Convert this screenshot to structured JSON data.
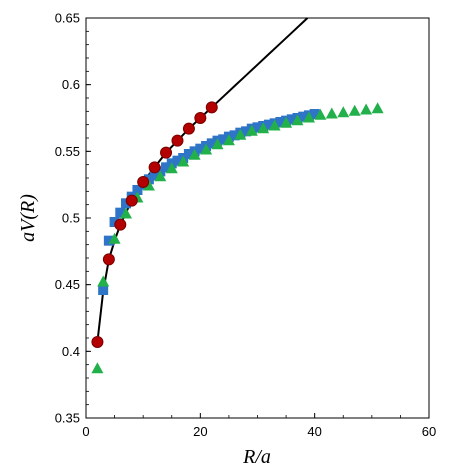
{
  "chart_data": {
    "type": "scatter",
    "title": "",
    "xlabel": "R/a",
    "ylabel": "aV(R)",
    "xlim": [
      0,
      60
    ],
    "ylim": [
      0.35,
      0.65
    ],
    "xticks": [
      0,
      20,
      40,
      60
    ],
    "yticks": [
      0.35,
      0.4,
      0.45,
      0.5,
      0.55,
      0.6,
      0.65
    ],
    "xtick_labels": [
      "0",
      "20",
      "40",
      "60"
    ],
    "ytick_labels": [
      "0.35",
      "0.4",
      "0.45",
      "0.5",
      "0.55",
      "0.6",
      "0.65"
    ],
    "grid": false,
    "legend": "none",
    "series": [
      {
        "marker": "circle",
        "color": "#b30000",
        "x": [
          2,
          4,
          6,
          8,
          10,
          12,
          14,
          16,
          18,
          20,
          22
        ],
        "y": [
          0.407,
          0.469,
          0.495,
          0.513,
          0.527,
          0.538,
          0.549,
          0.558,
          0.567,
          0.575,
          0.583
        ]
      },
      {
        "marker": "square",
        "color": "#2e75c8",
        "x": [
          3,
          4,
          5,
          6,
          7,
          8,
          9,
          10,
          11,
          12,
          13,
          14,
          15,
          16,
          17,
          18,
          19,
          20,
          21,
          22,
          23,
          24,
          25,
          26,
          27,
          28,
          29,
          30,
          31,
          32,
          33,
          34,
          35,
          36,
          37,
          38,
          39,
          40
        ],
        "y": [
          0.446,
          0.483,
          0.497,
          0.504,
          0.511,
          0.516,
          0.521,
          0.525,
          0.529,
          0.532,
          0.535,
          0.538,
          0.541,
          0.543,
          0.545,
          0.548,
          0.55,
          0.552,
          0.554,
          0.556,
          0.558,
          0.559,
          0.561,
          0.562,
          0.564,
          0.565,
          0.567,
          0.568,
          0.569,
          0.57,
          0.571,
          0.572,
          0.573,
          0.574,
          0.575,
          0.576,
          0.577,
          0.578
        ]
      },
      {
        "marker": "triangle",
        "color": "#22b04a",
        "x": [
          2,
          3,
          5,
          7,
          9,
          11,
          13,
          15,
          17,
          19,
          21,
          23,
          25,
          27,
          29,
          31,
          33,
          35,
          37,
          39,
          41,
          43,
          45,
          47,
          49,
          51
        ],
        "y": [
          0.387,
          0.452,
          0.484,
          0.503,
          0.515,
          0.524,
          0.531,
          0.537,
          0.542,
          0.547,
          0.551,
          0.555,
          0.558,
          0.562,
          0.565,
          0.567,
          0.569,
          0.571,
          0.573,
          0.575,
          0.577,
          0.578,
          0.579,
          0.58,
          0.581,
          0.582
        ]
      }
    ],
    "fit_line": {
      "color": "#000000",
      "x": [
        2,
        3,
        4,
        5,
        6,
        8,
        10,
        12,
        14,
        16,
        18,
        20,
        22,
        24,
        26,
        28,
        30,
        32,
        34,
        36,
        38,
        39
      ],
      "y": [
        0.407,
        0.445,
        0.469,
        0.483,
        0.495,
        0.513,
        0.527,
        0.538,
        0.549,
        0.558,
        0.567,
        0.575,
        0.583,
        0.591,
        0.599,
        0.607,
        0.615,
        0.623,
        0.631,
        0.639,
        0.647,
        0.651
      ]
    }
  }
}
